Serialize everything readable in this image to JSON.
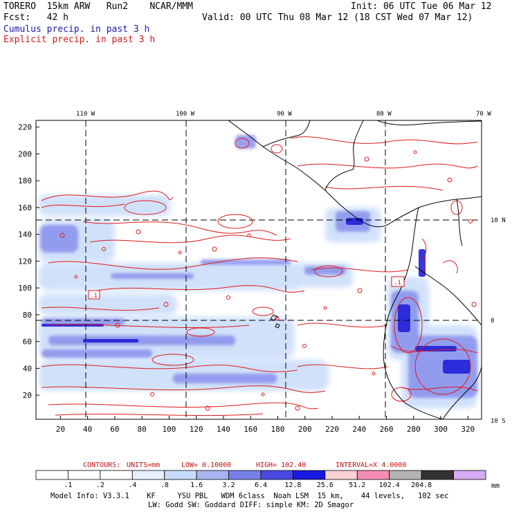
{
  "header": {
    "model": "TORERO",
    "resolution": "15km ARW",
    "run": "Run2",
    "org": "NCAR/MMM",
    "init": "Init: 06 UTC Tue 06 Mar 12",
    "fcst_label": "Fcst:",
    "fcst_value": "42 h",
    "valid": "Valid: 00 UTC Thu 08 Mar 12 (18 CST Wed 07 Mar 12)",
    "field1": "Cumulus precip. in past 3 h",
    "field2": "Explicit precip. in past 3 h"
  },
  "map": {
    "lon_labels": [
      "110 W",
      "100 W",
      "90 W",
      "80 W",
      "70 W"
    ],
    "lat_labels": [
      "10 N",
      "0",
      "10 S"
    ],
    "x_ticks": [
      "20",
      "40",
      "60",
      "80",
      "100",
      "120",
      "140",
      "160",
      "180",
      "200",
      "220",
      "240",
      "260",
      "280",
      "300",
      "320"
    ],
    "y_ticks": [
      "20",
      "40",
      "60",
      "80",
      "100",
      "120",
      "140",
      "160",
      "180",
      "200",
      "220"
    ],
    "x_range": [
      2,
      330
    ],
    "y_range": [
      2,
      225
    ],
    "contour_labels": [
      ".1",
      ".1"
    ],
    "colors": {
      "cumulus": "#4a52e0",
      "explicit": "#e01818",
      "land": "#000000",
      "grid": "#000000"
    }
  },
  "contours": {
    "title": "CONTOURS:",
    "units": "UNITS=mm",
    "low": "LOW= 0.10000",
    "high": "HIGH= 102.40",
    "interval": "INTERVAL=X 4.0000"
  },
  "colorbar": {
    "labels": [
      ".1",
      ".2",
      ".4",
      ".8",
      "1.6",
      "3.2",
      "6.4",
      "12.8",
      "25.6",
      "51.2",
      "102.4",
      "204.8"
    ],
    "colors": [
      "#ffffff",
      "#ffffff",
      "#ffffff",
      "#e6f0ff",
      "#c8dcfa",
      "#a8b4f0",
      "#7880e8",
      "#4848e0",
      "#1818e0",
      "#fad2d2",
      "#f58cb4",
      "#b4b4b4",
      "#323232",
      "#d7aaf5"
    ],
    "unit": "mm"
  },
  "footer": {
    "line1": "Model Info: V3.3.1    KF     YSU PBL   WDM 6class  Noah LSM  15 km,    44 levels,   102 sec",
    "line2": "LW: Godd SW: Goddard DIFF: simple KM: 2D Smagor"
  }
}
